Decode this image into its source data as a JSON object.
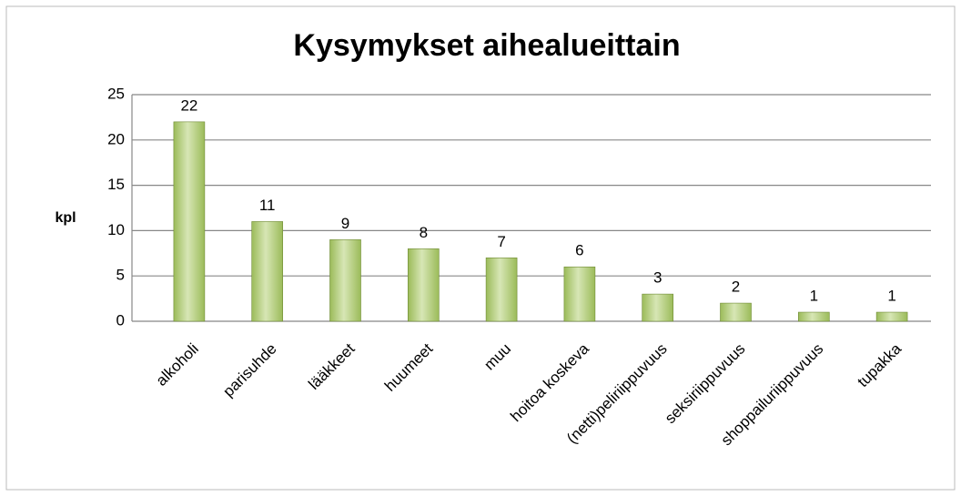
{
  "chart_data": {
    "type": "bar",
    "title": "Kysymykset aihealueittain",
    "y_label": "kpl",
    "categories": [
      "alkoholi",
      "parisuhde",
      "lääkkeet",
      "huumeet",
      "muu",
      "hoitoa koskeva",
      "(netti)peliriippuvuus",
      "seksiriippuvuus",
      "shoppailuriippuvuus",
      "tupakka"
    ],
    "values": [
      22,
      11,
      9,
      8,
      7,
      6,
      3,
      2,
      1,
      1
    ],
    "color": "#9bbb59",
    "ylim": [
      0,
      25
    ],
    "yticks": [
      0,
      5,
      10,
      15,
      20,
      25
    ],
    "grid": true
  }
}
